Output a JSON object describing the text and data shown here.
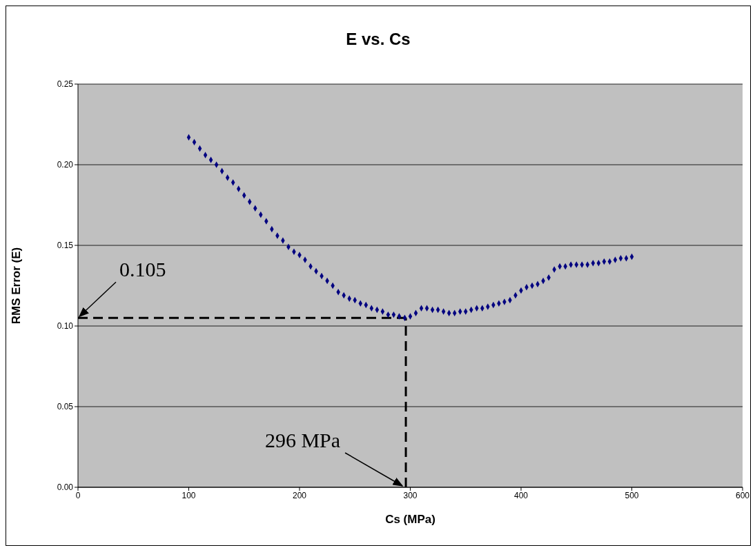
{
  "chart_data": {
    "type": "scatter",
    "title": "E vs. Cs",
    "xlabel": "Cs (MPa)",
    "ylabel": "RMS Error (E)",
    "xlim": [
      0,
      600
    ],
    "xticks": [
      0,
      100,
      200,
      300,
      400,
      500,
      600
    ],
    "ylim": [
      0,
      0.25
    ],
    "yticks": [
      {
        "value": 0,
        "label": "0.00"
      },
      {
        "value": 0.05,
        "label": "0.05"
      },
      {
        "value": 0.1,
        "label": "0.10"
      },
      {
        "value": 0.15,
        "label": "0.15"
      },
      {
        "value": 0.2,
        "label": "0.20"
      },
      {
        "value": 0.25,
        "label": "0.25"
      }
    ],
    "grid": "y",
    "legend": false,
    "marker": "diamond",
    "x": [
      100,
      105,
      110,
      115,
      120,
      125,
      130,
      135,
      140,
      145,
      150,
      155,
      160,
      165,
      170,
      175,
      180,
      185,
      190,
      195,
      200,
      205,
      210,
      215,
      220,
      225,
      230,
      235,
      240,
      245,
      250,
      255,
      260,
      265,
      270,
      275,
      280,
      285,
      290,
      295,
      300,
      305,
      310,
      315,
      320,
      325,
      330,
      335,
      340,
      345,
      350,
      355,
      360,
      365,
      370,
      375,
      380,
      385,
      390,
      395,
      400,
      405,
      410,
      415,
      420,
      425,
      430,
      435,
      440,
      445,
      450,
      455,
      460,
      465,
      470,
      475,
      480,
      485,
      490,
      495,
      500
    ],
    "series": [
      {
        "color": "#000080",
        "values": [
          0.217,
          0.214,
          0.21,
          0.206,
          0.203,
          0.2,
          0.196,
          0.192,
          0.189,
          0.185,
          0.181,
          0.177,
          0.173,
          0.169,
          0.165,
          0.16,
          0.156,
          0.153,
          0.149,
          0.146,
          0.144,
          0.141,
          0.137,
          0.134,
          0.131,
          0.128,
          0.125,
          0.121,
          0.119,
          0.117,
          0.116,
          0.114,
          0.113,
          0.111,
          0.11,
          0.109,
          0.107,
          0.107,
          0.106,
          0.105,
          0.106,
          0.108,
          0.111,
          0.111,
          0.11,
          0.11,
          0.109,
          0.108,
          0.108,
          0.109,
          0.109,
          0.11,
          0.111,
          0.111,
          0.112,
          0.113,
          0.114,
          0.115,
          0.116,
          0.119,
          0.122,
          0.124,
          0.125,
          0.126,
          0.128,
          0.13,
          0.135,
          0.137,
          0.137,
          0.138,
          0.138,
          0.138,
          0.138,
          0.139,
          0.139,
          0.14,
          0.14,
          0.141,
          0.142,
          0.142,
          0.143
        ]
      }
    ],
    "ref_lines": [
      {
        "axis": "y",
        "value": 0.105,
        "color": "#000000",
        "line_style": "dashed"
      },
      {
        "axis": "x",
        "value": 296,
        "color": "#000000",
        "line_style": "dashed"
      }
    ],
    "annotations": [
      {
        "text": "0.105",
        "x": 0,
        "y": 0.105
      },
      {
        "text": "296 MPa",
        "x": 296,
        "y": 0
      }
    ]
  }
}
